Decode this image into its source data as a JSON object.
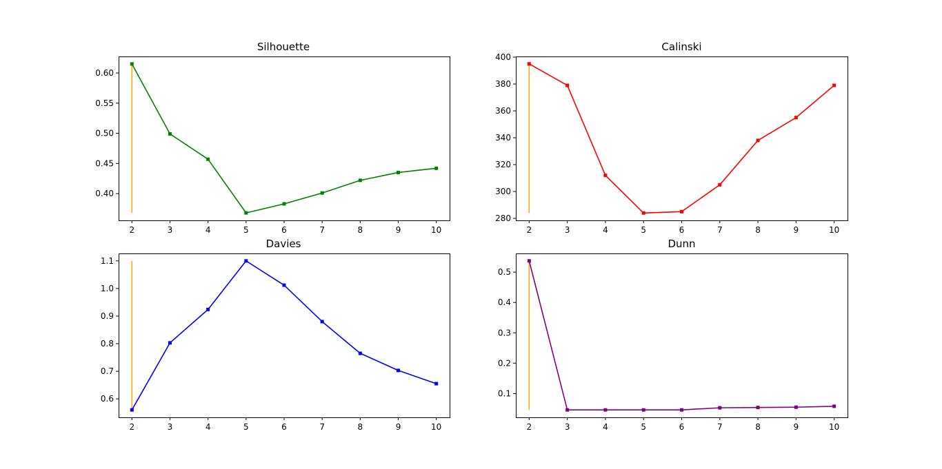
{
  "chart_data": [
    {
      "type": "line",
      "title": "Silhouette",
      "xlabel": "",
      "ylabel": "",
      "x": [
        2,
        3,
        4,
        5,
        6,
        7,
        8,
        9,
        10
      ],
      "series": [
        {
          "color": "#008000",
          "values": [
            0.615,
            0.499,
            0.457,
            0.368,
            0.383,
            0.401,
            0.422,
            0.435,
            0.442
          ]
        }
      ],
      "marker_line": {
        "x": 2,
        "color": "#ffa500",
        "from": 0.368,
        "to": 0.615
      },
      "xticks": [
        2,
        3,
        4,
        5,
        6,
        7,
        8,
        9,
        10
      ],
      "yticks": [
        0.4,
        0.45,
        0.5,
        0.55,
        0.6
      ],
      "ytick_labels": [
        "0.40",
        "0.45",
        "0.50",
        "0.55",
        "0.60"
      ],
      "xlim": [
        1.65,
        10.35
      ],
      "ylim": [
        0.3556,
        0.6274
      ],
      "grid": false
    },
    {
      "type": "line",
      "title": "Calinski",
      "xlabel": "",
      "ylabel": "",
      "x": [
        2,
        3,
        4,
        5,
        6,
        7,
        8,
        9,
        10
      ],
      "series": [
        {
          "color": "#ff0000",
          "values": [
            395,
            379,
            312,
            284,
            285,
            305,
            338,
            355,
            379
          ]
        }
      ],
      "marker_line": {
        "x": 2,
        "color": "#ffa500",
        "from": 284,
        "to": 395
      },
      "xticks": [
        2,
        3,
        4,
        5,
        6,
        7,
        8,
        9,
        10
      ],
      "yticks": [
        280,
        300,
        320,
        340,
        360,
        380,
        400
      ],
      "ytick_labels": [
        "280",
        "300",
        "320",
        "340",
        "360",
        "380",
        "400"
      ],
      "xlim": [
        1.65,
        10.35
      ],
      "ylim": [
        278.5,
        400.5
      ],
      "grid": false
    },
    {
      "type": "line",
      "title": "Davies",
      "xlabel": "",
      "ylabel": "",
      "x": [
        2,
        3,
        4,
        5,
        6,
        7,
        8,
        9,
        10
      ],
      "series": [
        {
          "color": "#0000ff",
          "values": [
            0.56,
            0.803,
            0.924,
            1.1,
            1.012,
            0.88,
            0.765,
            0.703,
            0.655
          ]
        }
      ],
      "marker_line": {
        "x": 2,
        "color": "#ffa500",
        "from": 0.56,
        "to": 1.1
      },
      "xticks": [
        2,
        3,
        4,
        5,
        6,
        7,
        8,
        9,
        10
      ],
      "yticks": [
        0.6,
        0.7,
        0.8,
        0.9,
        1.0,
        1.1
      ],
      "ytick_labels": [
        "0.6",
        "0.7",
        "0.8",
        "0.9",
        "1.0",
        "1.1"
      ],
      "xlim": [
        1.65,
        10.35
      ],
      "ylim": [
        0.533,
        1.127
      ],
      "grid": false
    },
    {
      "type": "line",
      "title": "Dunn",
      "xlabel": "",
      "ylabel": "",
      "x": [
        2,
        3,
        4,
        5,
        6,
        7,
        8,
        9,
        10
      ],
      "series": [
        {
          "color": "#800080",
          "values": [
            0.537,
            0.046,
            0.046,
            0.046,
            0.046,
            0.053,
            0.054,
            0.055,
            0.058
          ]
        }
      ],
      "marker_line": {
        "x": 2,
        "color": "#ffa500",
        "from": 0.046,
        "to": 0.537
      },
      "xticks": [
        2,
        3,
        4,
        5,
        6,
        7,
        8,
        9,
        10
      ],
      "yticks": [
        0.1,
        0.2,
        0.3,
        0.4,
        0.5
      ],
      "ytick_labels": [
        "0.1",
        "0.2",
        "0.3",
        "0.4",
        "0.5"
      ],
      "xlim": [
        1.65,
        10.35
      ],
      "ylim": [
        0.0215,
        0.5615
      ],
      "grid": false
    }
  ]
}
